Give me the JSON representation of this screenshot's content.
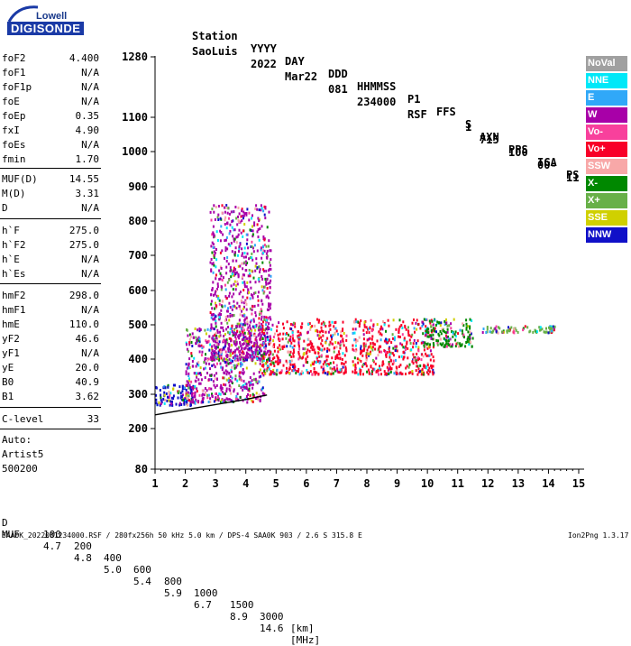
{
  "logo": {
    "line1": "Lowell",
    "line2": "DIGISONDE"
  },
  "header": {
    "row1": [
      "Station",
      "YYYY",
      "DAY",
      "DDD",
      "HHMMSS",
      "P1",
      "FFS",
      "S",
      "AXN",
      "PPS",
      "IGA",
      "PS"
    ],
    "row2": [
      "SaoLuis",
      "2022",
      "Mar22",
      "081",
      "234000",
      "RSF",
      "1",
      "715",
      "100",
      "00-",
      "11"
    ]
  },
  "params_group1": [
    {
      "name": "foF2",
      "value": "4.400"
    },
    {
      "name": "foF1",
      "value": "N/A"
    },
    {
      "name": "foF1p",
      "value": "N/A"
    },
    {
      "name": "foE",
      "value": "N/A"
    },
    {
      "name": "foEp",
      "value": "0.35"
    },
    {
      "name": "fxI",
      "value": "4.90"
    },
    {
      "name": "foEs",
      "value": "N/A"
    },
    {
      "name": "fmin",
      "value": "1.70"
    }
  ],
  "params_group2": [
    {
      "name": "MUF(D)",
      "value": "14.55"
    },
    {
      "name": "M(D)",
      "value": "3.31"
    },
    {
      "name": "D",
      "value": "N/A"
    }
  ],
  "params_group3": [
    {
      "name": "h`F",
      "value": "275.0"
    },
    {
      "name": "h`F2",
      "value": "275.0"
    },
    {
      "name": "h`E",
      "value": "N/A"
    },
    {
      "name": "h`Es",
      "value": "N/A"
    }
  ],
  "params_group4": [
    {
      "name": "hmF2",
      "value": "298.0"
    },
    {
      "name": "hmF1",
      "value": "N/A"
    },
    {
      "name": "hmE",
      "value": "110.0"
    },
    {
      "name": "yF2",
      "value": "46.6"
    },
    {
      "name": "yF1",
      "value": "N/A"
    },
    {
      "name": "yE",
      "value": "20.0"
    },
    {
      "name": "B0",
      "value": "40.9"
    },
    {
      "name": "B1",
      "value": "3.62"
    }
  ],
  "clevel": {
    "name": "C-level",
    "value": "33"
  },
  "auto": {
    "line1": "Auto:",
    "line2": "Artist5",
    "line3": "500200"
  },
  "legend": [
    {
      "label": "NoVal",
      "color": "#a0a0a0"
    },
    {
      "label": "NNE",
      "color": "#00e8f8"
    },
    {
      "label": "E",
      "color": "#30a8f8"
    },
    {
      "label": "W",
      "color": "#a800a8"
    },
    {
      "label": "Vo-",
      "color": "#f8409c"
    },
    {
      "label": "Vo+",
      "color": "#f80028"
    },
    {
      "label": "SSW",
      "color": "#f8a8a8"
    },
    {
      "label": "X-",
      "color": "#008800"
    },
    {
      "label": "X+",
      "color": "#68b048"
    },
    {
      "label": "SSE",
      "color": "#d0d000"
    },
    {
      "label": "NNW",
      "color": "#1010c8"
    }
  ],
  "chart_data": {
    "type": "scatter",
    "title": "",
    "xlabel": "",
    "ylabel": "",
    "xlim": [
      1,
      15
    ],
    "ylim": [
      80,
      1280
    ],
    "x_ticks": [
      "1",
      "2",
      "3",
      "4",
      "5",
      "6",
      "7",
      "8",
      "9",
      "10",
      "11",
      "12",
      "13",
      "14",
      "15"
    ],
    "y_ticks": [
      "80",
      "200",
      "300",
      "400",
      "500",
      "600",
      "700",
      "800",
      "900",
      "1000",
      "1100",
      "1280"
    ],
    "y_tick_values": [
      80,
      200,
      300,
      400,
      500,
      600,
      700,
      800,
      900,
      1000,
      1100,
      1280
    ],
    "y_scale": "nonlinear (compressed near top and bottom)",
    "grid": false,
    "legend_position": "right",
    "clusters": [
      {
        "x": [
          1.0,
          2.3
        ],
        "y": [
          270,
          330
        ],
        "dominant": "NNW"
      },
      {
        "x": [
          2.0,
          4.6
        ],
        "y": [
          280,
          500
        ],
        "dominant": "W"
      },
      {
        "x": [
          2.8,
          4.8
        ],
        "y": [
          400,
          850
        ],
        "dominant": "W"
      },
      {
        "x": [
          4.5,
          7.3
        ],
        "y": [
          360,
          520
        ],
        "dominant": "Vo+"
      },
      {
        "x": [
          7.5,
          10.2
        ],
        "y": [
          360,
          520
        ],
        "dominant": "Vo+"
      },
      {
        "x": [
          9.8,
          11.5
        ],
        "y": [
          440,
          520
        ],
        "dominant": "X-"
      },
      {
        "x": [
          11.8,
          14.2
        ],
        "y": [
          480,
          500
        ],
        "dominant": "X+"
      }
    ],
    "profile_line": {
      "x": [
        1.0,
        2.0,
        3.0,
        4.0,
        4.7
      ],
      "y": [
        240,
        255,
        270,
        285,
        298
      ]
    }
  },
  "footer": {
    "d_label": "D",
    "d_values": [
      "100",
      "200",
      "400",
      "600",
      "800",
      "1000",
      "1500",
      "3000",
      "[km]"
    ],
    "muf_label": "MUF",
    "muf_values": [
      "4.7",
      "4.8",
      "5.0",
      "5.4",
      "5.9",
      "6.7",
      "8.9",
      "14.6",
      "[MHz]"
    ],
    "file_info": "SAA0K_2022081234000.RSF / 280fx256h 50 kHz 5.0 km / DPS-4 SAA0K 903 / 2.6 S 315.8 E",
    "version": "Ion2Png 1.3.17"
  }
}
